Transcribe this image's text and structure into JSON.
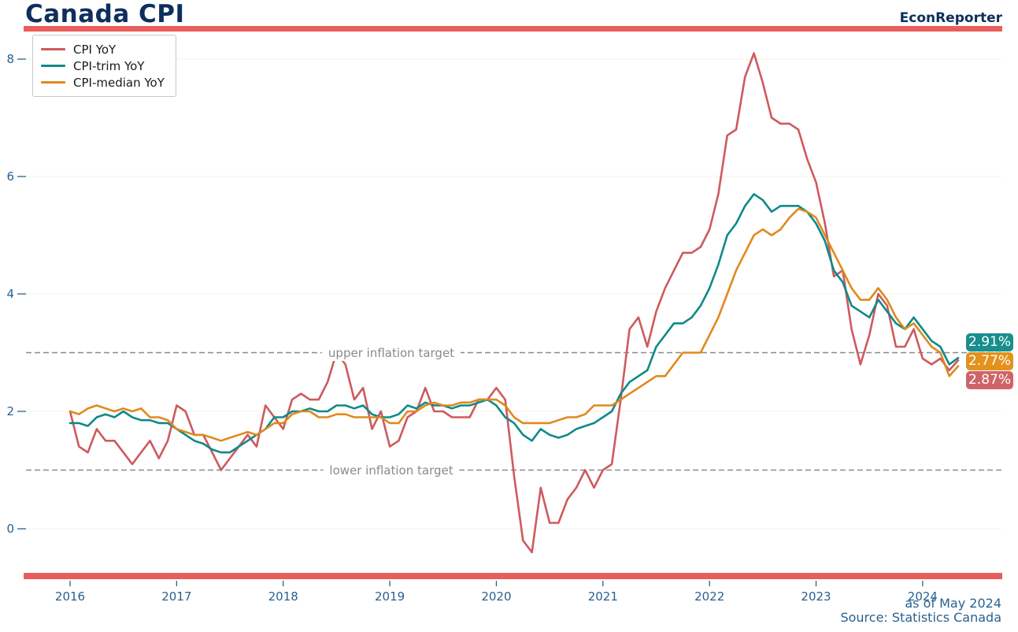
{
  "header": {
    "title": "Canada CPI",
    "brand": "EconReporter"
  },
  "footer": {
    "as_of": "as of May 2024",
    "source": "Source: Statistics Canada"
  },
  "colors": {
    "accent_bar": "#e95d5b",
    "title_navy": "#0e2f5c",
    "axis_blue": "#29618f",
    "target_grey": "#8a8a8a",
    "gridline": "#faf3e3"
  },
  "chart_data": {
    "type": "line",
    "title": "Canada CPI",
    "frequency": "monthly",
    "x_start": "2016-01",
    "x_end": "2024-05",
    "xlabel": "",
    "ylabel": "",
    "ylim": [
      -0.7,
      8.4
    ],
    "yticks": [
      0,
      2,
      4,
      6,
      8
    ],
    "xticks_years": [
      2016,
      2017,
      2018,
      2019,
      2020,
      2021,
      2022,
      2023,
      2024
    ],
    "grid": "faint horizontal at yticks",
    "legend_position": "upper left",
    "target_lines": [
      {
        "label": "upper inflation target",
        "value": 3
      },
      {
        "label": "lower inflation target",
        "value": 1
      }
    ],
    "series": [
      {
        "name": "CPI YoY",
        "color": "#cd5a5e",
        "values": [
          2.0,
          1.4,
          1.3,
          1.7,
          1.5,
          1.5,
          1.3,
          1.1,
          1.3,
          1.5,
          1.2,
          1.5,
          2.1,
          2.0,
          1.6,
          1.6,
          1.3,
          1.0,
          1.2,
          1.4,
          1.6,
          1.4,
          2.1,
          1.9,
          1.7,
          2.2,
          2.3,
          2.2,
          2.2,
          2.5,
          3.0,
          2.8,
          2.2,
          2.4,
          1.7,
          2.0,
          1.4,
          1.5,
          1.9,
          2.0,
          2.4,
          2.0,
          2.0,
          1.9,
          1.9,
          1.9,
          2.2,
          2.2,
          2.4,
          2.2,
          0.9,
          -0.2,
          -0.4,
          0.7,
          0.1,
          0.1,
          0.5,
          0.7,
          1.0,
          0.7,
          1.0,
          1.1,
          2.2,
          3.4,
          3.6,
          3.1,
          3.7,
          4.1,
          4.4,
          4.7,
          4.7,
          4.8,
          5.1,
          5.7,
          6.7,
          6.8,
          7.7,
          8.1,
          7.6,
          7.0,
          6.9,
          6.9,
          6.8,
          6.3,
          5.9,
          5.2,
          4.3,
          4.4,
          3.4,
          2.8,
          3.3,
          4.0,
          3.8,
          3.1,
          3.1,
          3.4,
          2.9,
          2.8,
          2.9,
          2.7,
          2.87
        ]
      },
      {
        "name": "CPI-trim YoY",
        "color": "#0e8a89",
        "values": [
          1.8,
          1.8,
          1.75,
          1.9,
          1.95,
          1.9,
          2.0,
          1.9,
          1.85,
          1.85,
          1.8,
          1.8,
          1.7,
          1.6,
          1.5,
          1.45,
          1.35,
          1.3,
          1.3,
          1.4,
          1.5,
          1.6,
          1.7,
          1.9,
          1.9,
          2.0,
          2.0,
          2.05,
          2.0,
          2.0,
          2.1,
          2.1,
          2.05,
          2.1,
          1.95,
          1.9,
          1.9,
          1.95,
          2.1,
          2.05,
          2.15,
          2.1,
          2.1,
          2.05,
          2.1,
          2.1,
          2.15,
          2.2,
          2.1,
          1.9,
          1.8,
          1.6,
          1.5,
          1.7,
          1.6,
          1.55,
          1.6,
          1.7,
          1.75,
          1.8,
          1.9,
          2.0,
          2.3,
          2.5,
          2.6,
          2.7,
          3.1,
          3.3,
          3.5,
          3.5,
          3.6,
          3.8,
          4.1,
          4.5,
          5.0,
          5.2,
          5.5,
          5.7,
          5.6,
          5.4,
          5.5,
          5.5,
          5.5,
          5.4,
          5.2,
          4.9,
          4.4,
          4.2,
          3.8,
          3.7,
          3.6,
          3.9,
          3.7,
          3.5,
          3.4,
          3.6,
          3.4,
          3.2,
          3.1,
          2.8,
          2.91
        ]
      },
      {
        "name": "CPI-median YoY",
        "color": "#e0891e",
        "values": [
          2.0,
          1.95,
          2.05,
          2.1,
          2.05,
          2.0,
          2.05,
          2.0,
          2.05,
          1.9,
          1.9,
          1.85,
          1.7,
          1.65,
          1.6,
          1.6,
          1.55,
          1.5,
          1.55,
          1.6,
          1.65,
          1.6,
          1.7,
          1.8,
          1.8,
          1.95,
          2.0,
          2.0,
          1.9,
          1.9,
          1.95,
          1.95,
          1.9,
          1.9,
          1.9,
          1.9,
          1.8,
          1.8,
          2.0,
          2.0,
          2.1,
          2.15,
          2.1,
          2.1,
          2.15,
          2.15,
          2.2,
          2.2,
          2.2,
          2.1,
          1.9,
          1.8,
          1.8,
          1.8,
          1.8,
          1.85,
          1.9,
          1.9,
          1.95,
          2.1,
          2.1,
          2.1,
          2.2,
          2.3,
          2.4,
          2.5,
          2.6,
          2.6,
          2.8,
          3.0,
          3.0,
          3.0,
          3.3,
          3.6,
          4.0,
          4.4,
          4.7,
          5.0,
          5.1,
          5.0,
          5.1,
          5.3,
          5.45,
          5.4,
          5.3,
          5.0,
          4.7,
          4.4,
          4.1,
          3.9,
          3.9,
          4.1,
          3.9,
          3.6,
          3.4,
          3.5,
          3.3,
          3.1,
          3.0,
          2.6,
          2.77
        ]
      }
    ],
    "end_labels": [
      {
        "text": "2.91%",
        "series": "CPI-trim YoY",
        "color": "#178f8d"
      },
      {
        "text": "2.77%",
        "series": "CPI-median YoY",
        "color": "#e2921d"
      },
      {
        "text": "2.87%",
        "series": "CPI YoY",
        "color": "#cf6468"
      }
    ]
  }
}
